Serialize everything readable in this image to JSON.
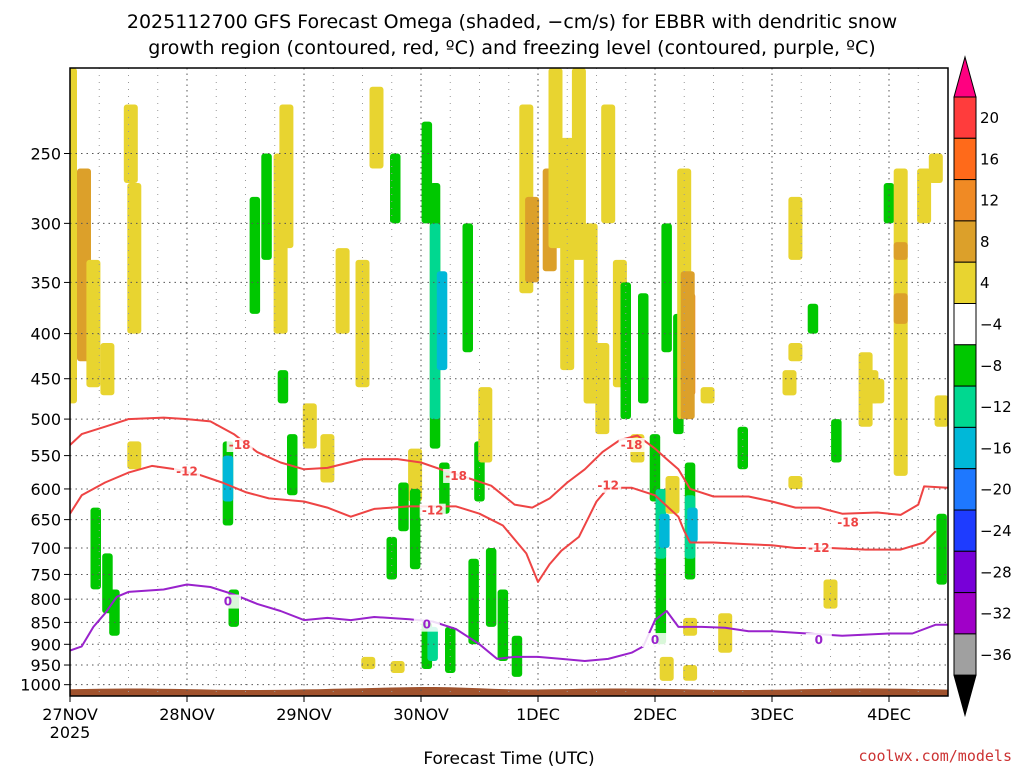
{
  "title_line1": "2025112700 GFS Forecast Omega (shaded, −cm/s) for EBBR with dendritic snow",
  "title_line2": "growth region (contoured, red, ºC) and freezing level (contoured, purple, ºC)",
  "credit": "coolwx.com/models",
  "credit_color": "#cc3333",
  "chart_data": {
    "type": "heatmap",
    "xlabel": "Forecast Time (UTC)",
    "ylabel": "",
    "x_start_sublabel": "2025",
    "x_ticks": [
      {
        "day": 0,
        "label": "27NOV"
      },
      {
        "day": 1,
        "label": "28NOV"
      },
      {
        "day": 2,
        "label": "29NOV"
      },
      {
        "day": 3,
        "label": "30NOV"
      },
      {
        "day": 4,
        "label": "1DEC"
      },
      {
        "day": 5,
        "label": "2DEC"
      },
      {
        "day": 6,
        "label": "3DEC"
      },
      {
        "day": 7,
        "label": "4DEC"
      }
    ],
    "x_range_days": [
      0,
      7.5
    ],
    "y_ticks": [
      250,
      300,
      350,
      400,
      450,
      500,
      550,
      600,
      650,
      700,
      750,
      800,
      850,
      900,
      950,
      1000
    ],
    "y_range_hpa": [
      200,
      1030
    ],
    "y_scale": "log-pressure (inverted)",
    "grid": "dotted",
    "colorbar": {
      "labels": [
        "20",
        "16",
        "12",
        "8",
        "4",
        "−4",
        "−8",
        "−12",
        "−16",
        "−20",
        "−24",
        "−28",
        "−32",
        "−36"
      ],
      "colors": [
        "#ff0080",
        "#ff3c3c",
        "#ff6a1a",
        "#f08a24",
        "#dca02a",
        "#e8d430",
        "#ffffff",
        "#00c800",
        "#00d890",
        "#00b8d8",
        "#1e78ff",
        "#1e3cff",
        "#7800d8",
        "#a000c8",
        "#a0a0a0",
        "#000000"
      ]
    },
    "omega_colors": {
      "yellow": "#e8d430",
      "orange": "#dca02a",
      "dark_orange": "#f08a24",
      "green": "#00c800",
      "teal": "#00d890",
      "cyan": "#00b8d8"
    },
    "ground_color": "#a0522d",
    "contours": [
      {
        "label": "-18",
        "color": "#ee4444",
        "label_positions": [
          [
            1.45,
            535
          ],
          [
            3.3,
            580
          ],
          [
            4.8,
            535
          ],
          [
            6.65,
            655
          ]
        ],
        "points": [
          [
            0,
            535
          ],
          [
            0.1,
            520
          ],
          [
            0.3,
            510
          ],
          [
            0.5,
            500
          ],
          [
            0.8,
            498
          ],
          [
            1.0,
            500
          ],
          [
            1.2,
            503
          ],
          [
            1.4,
            520
          ],
          [
            1.6,
            545
          ],
          [
            1.8,
            560
          ],
          [
            2.0,
            570
          ],
          [
            2.2,
            568
          ],
          [
            2.5,
            555
          ],
          [
            2.8,
            555
          ],
          [
            3.0,
            560
          ],
          [
            3.2,
            572
          ],
          [
            3.35,
            580
          ],
          [
            3.6,
            595
          ],
          [
            3.8,
            625
          ],
          [
            3.95,
            630
          ],
          [
            4.1,
            615
          ],
          [
            4.25,
            590
          ],
          [
            4.4,
            570
          ],
          [
            4.55,
            545
          ],
          [
            4.7,
            528
          ],
          [
            4.85,
            522
          ],
          [
            5.0,
            540
          ],
          [
            5.1,
            555
          ],
          [
            5.2,
            570
          ],
          [
            5.3,
            600
          ],
          [
            5.5,
            612
          ],
          [
            5.8,
            612
          ],
          [
            6.0,
            620
          ],
          [
            6.2,
            630
          ],
          [
            6.4,
            630
          ],
          [
            6.6,
            640
          ],
          [
            6.9,
            638
          ],
          [
            7.1,
            642
          ],
          [
            7.25,
            625
          ],
          [
            7.3,
            596
          ],
          [
            7.5,
            598
          ]
        ]
      },
      {
        "label": "-12",
        "color": "#ee4444",
        "label_positions": [
          [
            1.0,
            573
          ],
          [
            3.1,
            635
          ],
          [
            4.6,
            595
          ],
          [
            6.4,
            700
          ]
        ],
        "points": [
          [
            0,
            640
          ],
          [
            0.1,
            610
          ],
          [
            0.3,
            590
          ],
          [
            0.5,
            575
          ],
          [
            0.7,
            565
          ],
          [
            0.9,
            570
          ],
          [
            1.1,
            578
          ],
          [
            1.3,
            590
          ],
          [
            1.5,
            605
          ],
          [
            1.7,
            615
          ],
          [
            2.0,
            620
          ],
          [
            2.2,
            630
          ],
          [
            2.4,
            645
          ],
          [
            2.6,
            632
          ],
          [
            2.9,
            628
          ],
          [
            3.1,
            628
          ],
          [
            3.3,
            628
          ],
          [
            3.5,
            640
          ],
          [
            3.7,
            660
          ],
          [
            3.9,
            710
          ],
          [
            4.0,
            765
          ],
          [
            4.1,
            730
          ],
          [
            4.2,
            705
          ],
          [
            4.35,
            680
          ],
          [
            4.5,
            620
          ],
          [
            4.6,
            598
          ],
          [
            4.8,
            598
          ],
          [
            5.0,
            610
          ],
          [
            5.2,
            645
          ],
          [
            5.25,
            670
          ],
          [
            5.3,
            690
          ],
          [
            5.5,
            690
          ],
          [
            5.8,
            693
          ],
          [
            6.0,
            695
          ],
          [
            6.2,
            700
          ],
          [
            6.5,
            700
          ],
          [
            6.8,
            703
          ],
          [
            7.1,
            703
          ],
          [
            7.3,
            690
          ],
          [
            7.4,
            670
          ]
        ]
      },
      {
        "label": "0",
        "color": "#9922cc",
        "label_positions": [
          [
            1.35,
            805
          ],
          [
            3.05,
            855
          ],
          [
            5.0,
            890
          ],
          [
            6.4,
            890
          ]
        ],
        "points": [
          [
            0,
            915
          ],
          [
            0.1,
            905
          ],
          [
            0.2,
            860
          ],
          [
            0.3,
            830
          ],
          [
            0.4,
            795
          ],
          [
            0.5,
            785
          ],
          [
            0.8,
            780
          ],
          [
            1.0,
            770
          ],
          [
            1.2,
            775
          ],
          [
            1.4,
            790
          ],
          [
            1.6,
            810
          ],
          [
            1.8,
            825
          ],
          [
            2.0,
            845
          ],
          [
            2.2,
            840
          ],
          [
            2.4,
            845
          ],
          [
            2.6,
            838
          ],
          [
            2.9,
            843
          ],
          [
            3.1,
            848
          ],
          [
            3.3,
            865
          ],
          [
            3.5,
            900
          ],
          [
            3.65,
            935
          ],
          [
            3.8,
            930
          ],
          [
            4.0,
            930
          ],
          [
            4.2,
            935
          ],
          [
            4.4,
            940
          ],
          [
            4.6,
            935
          ],
          [
            4.8,
            920
          ],
          [
            4.9,
            905
          ],
          [
            5.0,
            845
          ],
          [
            5.1,
            825
          ],
          [
            5.2,
            860
          ],
          [
            5.4,
            860
          ],
          [
            5.6,
            862
          ],
          [
            5.8,
            870
          ],
          [
            6.0,
            870
          ],
          [
            6.3,
            875
          ],
          [
            6.6,
            880
          ],
          [
            7.0,
            875
          ],
          [
            7.2,
            875
          ],
          [
            7.4,
            855
          ],
          [
            7.5,
            855
          ]
        ]
      }
    ]
  }
}
